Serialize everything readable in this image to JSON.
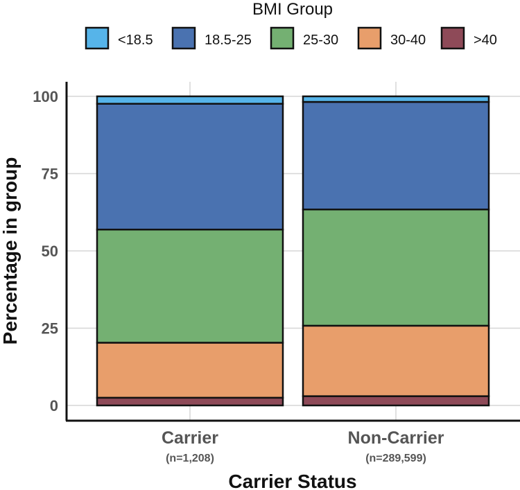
{
  "chart_data": {
    "type": "bar",
    "stacked": true,
    "legend": {
      "title": "BMI Group",
      "position": "top"
    },
    "xlabel": "Carrier Status",
    "ylabel": "Percentage in group",
    "ylim": [
      0,
      100
    ],
    "yticks": [
      0,
      25,
      50,
      75,
      100
    ],
    "grid": true,
    "categories": [
      "Carrier",
      "Non-Carrier"
    ],
    "category_subtitles": [
      "(n=1,208)",
      "(n=289,599)"
    ],
    "series": [
      {
        "name": ">40",
        "color": "#8E4A58",
        "values": [
          2.5,
          3.0
        ]
      },
      {
        "name": "30-40",
        "color": "#E89E6B",
        "values": [
          17.8,
          22.8
        ]
      },
      {
        "name": "25-30",
        "color": "#74B072",
        "values": [
          36.6,
          37.6
        ]
      },
      {
        "name": "18.5-25",
        "color": "#4A72B0",
        "values": [
          40.7,
          34.8
        ]
      },
      {
        "name": "<18.5",
        "color": "#56B4E9",
        "values": [
          2.4,
          1.8
        ]
      }
    ],
    "legend_order": [
      "<18.5",
      "18.5-25",
      "25-30",
      "30-40",
      ">40"
    ]
  }
}
